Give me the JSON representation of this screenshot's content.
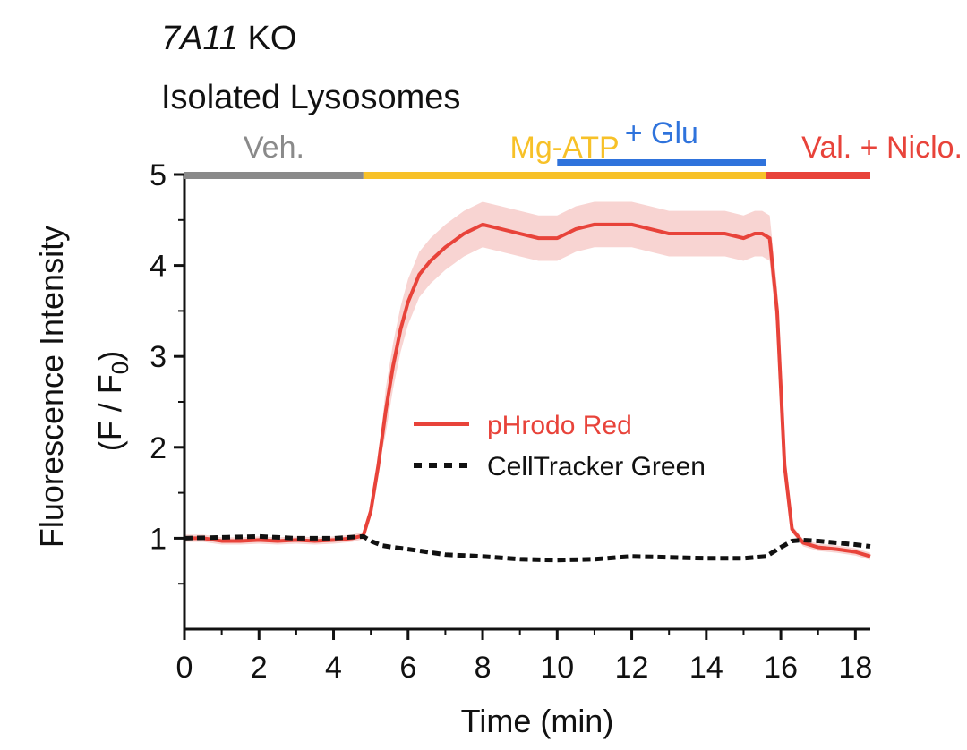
{
  "title": {
    "gene": "7A11",
    "suffix": " KO",
    "line2": "Isolated Lysosomes"
  },
  "colors": {
    "red": "#e8433a",
    "red_band": "#f8d4d2",
    "black": "#111111",
    "gray": "#8a8a8a",
    "yellow": "#f7c128",
    "blue": "#2f73dc"
  },
  "conditions": [
    {
      "label": "Veh.",
      "start": 0,
      "end": 4.8,
      "color": "#8a8a8a",
      "row": "main"
    },
    {
      "label": "Mg-ATP",
      "start": 4.8,
      "end": 15.6,
      "color": "#f7c128",
      "row": "main"
    },
    {
      "label": "+ Glu",
      "start": 10.0,
      "end": 15.6,
      "color": "#2f73dc",
      "row": "upper"
    },
    {
      "label": "Val. + Niclo.",
      "start": 15.6,
      "end": 18.4,
      "color": "#e8433a",
      "row": "main"
    }
  ],
  "chart_data": {
    "type": "line",
    "xlabel": "Time (min)",
    "ylabel_line1": "Fluorescence Intensity",
    "ylabel_line2_pre": "(F / F",
    "ylabel_line2_sub": "0",
    "ylabel_line2_post": ")",
    "xlim": [
      0,
      18.4
    ],
    "ylim": [
      0,
      5
    ],
    "xticks": [
      0,
      2,
      4,
      6,
      8,
      10,
      12,
      14,
      16,
      18
    ],
    "yticks": [
      1,
      2,
      3,
      4,
      5
    ],
    "grid": false,
    "legend_position": "center",
    "series": [
      {
        "name": "pHrodo Red",
        "color": "#e8433a",
        "style": "solid",
        "error_band": 0.25,
        "x": [
          0,
          0.5,
          1.0,
          1.5,
          2.0,
          2.5,
          3.0,
          3.5,
          4.0,
          4.5,
          4.8,
          5.0,
          5.2,
          5.4,
          5.6,
          5.8,
          6.0,
          6.3,
          6.6,
          7.0,
          7.5,
          8.0,
          8.5,
          9.0,
          9.5,
          10.0,
          10.5,
          11.0,
          11.5,
          12.0,
          12.5,
          13.0,
          13.5,
          14.0,
          14.5,
          15.0,
          15.3,
          15.5,
          15.7,
          15.9,
          16.1,
          16.3,
          16.6,
          17.0,
          17.5,
          18.0,
          18.4
        ],
        "y": [
          1.0,
          1.0,
          0.97,
          0.97,
          0.98,
          0.97,
          0.98,
          0.97,
          0.98,
          1.0,
          1.03,
          1.3,
          1.8,
          2.4,
          2.9,
          3.3,
          3.6,
          3.9,
          4.05,
          4.2,
          4.35,
          4.45,
          4.4,
          4.35,
          4.3,
          4.3,
          4.4,
          4.45,
          4.45,
          4.45,
          4.4,
          4.35,
          4.35,
          4.35,
          4.35,
          4.3,
          4.35,
          4.35,
          4.3,
          3.5,
          1.8,
          1.1,
          0.95,
          0.9,
          0.88,
          0.85,
          0.8
        ]
      },
      {
        "name": "CellTracker Green",
        "color": "#111111",
        "style": "dashed",
        "x": [
          0,
          1.0,
          2.0,
          3.0,
          4.0,
          4.8,
          5.0,
          5.3,
          5.6,
          6.0,
          6.5,
          7.0,
          8.0,
          9.0,
          10.0,
          11.0,
          12.0,
          13.0,
          14.0,
          15.0,
          15.6,
          16.0,
          16.3,
          16.6,
          17.0,
          17.5,
          18.0,
          18.4
        ],
        "y": [
          1.0,
          1.01,
          1.02,
          1.0,
          1.0,
          1.02,
          0.97,
          0.92,
          0.9,
          0.88,
          0.85,
          0.82,
          0.8,
          0.77,
          0.76,
          0.77,
          0.8,
          0.79,
          0.78,
          0.78,
          0.8,
          0.9,
          0.97,
          0.98,
          0.97,
          0.95,
          0.93,
          0.91
        ]
      }
    ]
  }
}
